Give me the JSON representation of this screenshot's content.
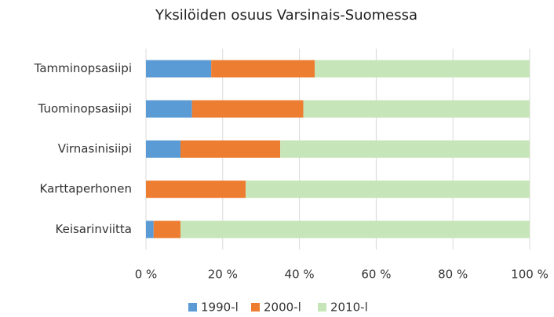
{
  "chart_data": {
    "type": "stacked_bar_horizontal",
    "title": "Yksilöiden osuus Varsinais-Suomessa",
    "categories": [
      "Tamminopsasiipi",
      "Tuominopsasiipi",
      "Virnasinisiipi",
      "Karttaperhonen",
      "Keisarinviitta"
    ],
    "series": [
      {
        "name": "1990-l",
        "color": "#5b9bd5",
        "values": [
          17,
          12,
          9,
          0,
          2
        ]
      },
      {
        "name": "2000-l",
        "color": "#ed7d31",
        "values": [
          27,
          29,
          26,
          26,
          7
        ]
      },
      {
        "name": "2010-l",
        "color": "#c6e5b8",
        "values": [
          56,
          59,
          65,
          74,
          91
        ]
      }
    ],
    "xlim": [
      0,
      100
    ],
    "xticks": [
      {
        "value": 0,
        "label": "0 %"
      },
      {
        "value": 20,
        "label": "20 %"
      },
      {
        "value": 40,
        "label": "40 %"
      },
      {
        "value": 60,
        "label": "60 %"
      },
      {
        "value": 80,
        "label": "80 %"
      },
      {
        "value": 100,
        "label": "100 %"
      }
    ],
    "grid": true,
    "legend": "bottom"
  }
}
